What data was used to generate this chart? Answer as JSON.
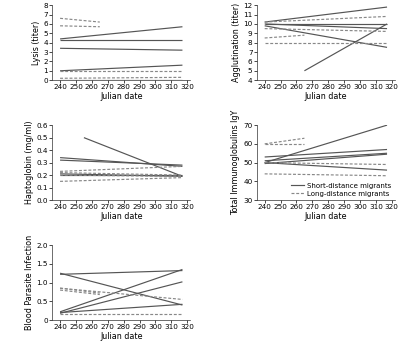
{
  "xlabel": "Julian date",
  "xmin": 235,
  "xmax": 322,
  "xticks": [
    240,
    250,
    260,
    270,
    280,
    290,
    300,
    310,
    320
  ],
  "lysis": {
    "ylabel": "Lysis (titer)",
    "ylim": [
      0,
      8
    ],
    "yticks": [
      0,
      1,
      2,
      3,
      4,
      5,
      6,
      7,
      8
    ],
    "solid_lines": [
      [
        [
          240,
          317
        ],
        [
          4.4,
          5.7
        ]
      ],
      [
        [
          240,
          317
        ],
        [
          4.3,
          4.3
        ]
      ],
      [
        [
          240,
          317
        ],
        [
          3.4,
          3.2
        ]
      ],
      [
        [
          240,
          317
        ],
        [
          1.0,
          1.6
        ]
      ],
      [
        [
          240,
          317
        ],
        [
          0.0,
          0.0
        ]
      ]
    ],
    "dashed_lines": [
      [
        [
          240,
          265
        ],
        [
          6.6,
          6.2
        ]
      ],
      [
        [
          240,
          265
        ],
        [
          5.8,
          5.7
        ]
      ],
      [
        [
          240,
          317
        ],
        [
          1.0,
          1.0
        ]
      ],
      [
        [
          240,
          317
        ],
        [
          0.2,
          0.3
        ]
      ]
    ]
  },
  "agglutination": {
    "ylabel": "Agglutination (titer)",
    "ylim": [
      4,
      12
    ],
    "yticks": [
      4,
      5,
      6,
      7,
      8,
      9,
      10,
      11,
      12
    ],
    "solid_lines": [
      [
        [
          240,
          317
        ],
        [
          10.2,
          11.8
        ]
      ],
      [
        [
          240,
          317
        ],
        [
          10.0,
          10.0
        ]
      ],
      [
        [
          240,
          317
        ],
        [
          10.0,
          9.5
        ]
      ],
      [
        [
          240,
          317
        ],
        [
          9.8,
          7.5
        ]
      ],
      [
        [
          265,
          317
        ],
        [
          5.0,
          10.0
        ]
      ]
    ],
    "dashed_lines": [
      [
        [
          240,
          317
        ],
        [
          10.2,
          10.8
        ]
      ],
      [
        [
          240,
          317
        ],
        [
          9.5,
          9.2
        ]
      ],
      [
        [
          240,
          317
        ],
        [
          8.0,
          8.0
        ]
      ],
      [
        [
          240,
          265
        ],
        [
          8.5,
          8.8
        ]
      ]
    ]
  },
  "hapto": {
    "ylabel": "Haptoglobin (mg/ml)",
    "ylim": [
      0.0,
      0.6
    ],
    "yticks": [
      0.0,
      0.1,
      0.2,
      0.3,
      0.4,
      0.5,
      0.6
    ],
    "solid_lines": [
      [
        [
          240,
          317
        ],
        [
          0.34,
          0.27
        ]
      ],
      [
        [
          240,
          317
        ],
        [
          0.32,
          0.28
        ]
      ],
      [
        [
          255,
          317
        ],
        [
          0.5,
          0.19
        ]
      ],
      [
        [
          240,
          317
        ],
        [
          0.21,
          0.19
        ]
      ],
      [
        [
          240,
          317
        ],
        [
          0.2,
          0.2
        ]
      ]
    ],
    "dashed_lines": [
      [
        [
          240,
          317
        ],
        [
          0.23,
          0.27
        ]
      ],
      [
        [
          240,
          317
        ],
        [
          0.22,
          0.2
        ]
      ],
      [
        [
          240,
          317
        ],
        [
          0.2,
          0.19
        ]
      ],
      [
        [
          240,
          317
        ],
        [
          0.15,
          0.18
        ]
      ]
    ]
  },
  "immuno": {
    "ylabel": "Total Immunoglobulins IgY",
    "ylim": [
      30,
      70
    ],
    "yticks": [
      30,
      40,
      50,
      60,
      70
    ],
    "solid_lines": [
      [
        [
          240,
          317
        ],
        [
          50.0,
          70.0
        ]
      ],
      [
        [
          240,
          317
        ],
        [
          53.0,
          57.0
        ]
      ],
      [
        [
          240,
          317
        ],
        [
          51.0,
          55.0
        ]
      ],
      [
        [
          240,
          317
        ],
        [
          50.0,
          46.0
        ]
      ],
      [
        [
          240,
          317
        ],
        [
          49.5,
          54.5
        ]
      ]
    ],
    "dashed_lines": [
      [
        [
          240,
          265
        ],
        [
          60.0,
          63.0
        ]
      ],
      [
        [
          240,
          265
        ],
        [
          60.0,
          60.0
        ]
      ],
      [
        [
          240,
          317
        ],
        [
          50.0,
          49.0
        ]
      ],
      [
        [
          240,
          317
        ],
        [
          44.0,
          43.0
        ]
      ]
    ],
    "legend": {
      "solid": "Short-distance migrants",
      "dashed": "Long-distance migrants"
    }
  },
  "parasite": {
    "ylabel": "Blood Parasite Infection",
    "ylim": [
      0,
      2
    ],
    "yticks": [
      0,
      0.5,
      1.0,
      1.5,
      2.0
    ],
    "solid_lines": [
      [
        [
          240,
          317
        ],
        [
          0.22,
          1.35
        ]
      ],
      [
        [
          240,
          317
        ],
        [
          0.2,
          0.42
        ]
      ],
      [
        [
          240,
          317
        ],
        [
          0.18,
          1.02
        ]
      ],
      [
        [
          240,
          317
        ],
        [
          1.25,
          0.4
        ]
      ],
      [
        [
          240,
          317
        ],
        [
          1.22,
          1.32
        ]
      ]
    ],
    "dashed_lines": [
      [
        [
          240,
          265
        ],
        [
          0.85,
          0.72
        ]
      ],
      [
        [
          240,
          265
        ],
        [
          0.8,
          0.68
        ]
      ],
      [
        [
          240,
          317
        ],
        [
          0.15,
          0.15
        ]
      ],
      [
        [
          240,
          317
        ],
        [
          0.85,
          0.55
        ]
      ]
    ]
  },
  "line_color_solid": "#555555",
  "line_color_dashed": "#888888",
  "linewidth": 0.85,
  "font_size_label": 5.8,
  "font_size_tick": 5.2,
  "font_size_legend": 5.0
}
